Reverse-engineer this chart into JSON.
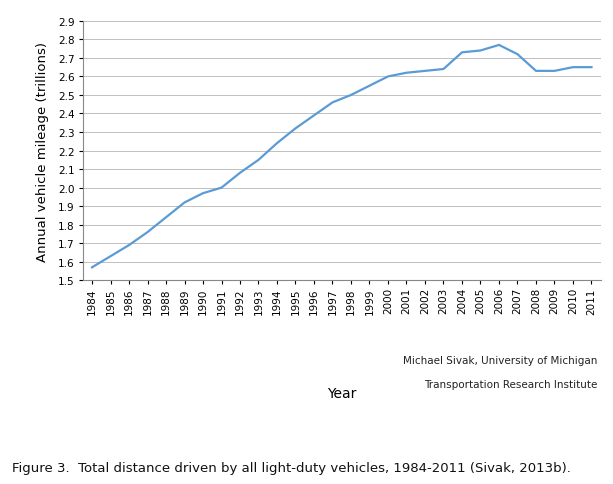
{
  "years": [
    1984,
    1985,
    1986,
    1987,
    1988,
    1989,
    1990,
    1991,
    1992,
    1993,
    1994,
    1995,
    1996,
    1997,
    1998,
    1999,
    2000,
    2001,
    2002,
    2003,
    2004,
    2005,
    2006,
    2007,
    2008,
    2009,
    2010,
    2011
  ],
  "values": [
    1.57,
    1.63,
    1.69,
    1.76,
    1.84,
    1.92,
    1.97,
    2.0,
    2.08,
    2.15,
    2.24,
    2.32,
    2.39,
    2.46,
    2.5,
    2.55,
    2.6,
    2.62,
    2.63,
    2.64,
    2.73,
    2.74,
    2.77,
    2.72,
    2.63,
    2.63,
    2.65,
    2.65
  ],
  "line_color": "#5b9bd5",
  "line_width": 1.6,
  "ylim": [
    1.5,
    2.9
  ],
  "yticks": [
    1.5,
    1.6,
    1.7,
    1.8,
    1.9,
    2.0,
    2.1,
    2.2,
    2.3,
    2.4,
    2.5,
    2.6,
    2.7,
    2.8,
    2.9
  ],
  "ylabel": "Annual vehicle mileage (trillions)",
  "xlabel": "Year",
  "grid_color": "#c0c0c0",
  "background_color": "#ffffff",
  "attribution_line1": "Michael Sivak, University of Michigan",
  "attribution_line2": "Transportation Research Institute",
  "caption": "Figure 3.  Total distance driven by all light-duty vehicles, 1984-2011 (Sivak, 2013b).",
  "ylabel_fontsize": 9.5,
  "xlabel_fontsize": 10,
  "tick_fontsize": 7.5,
  "caption_fontsize": 9.5,
  "attribution_fontsize": 7.5
}
